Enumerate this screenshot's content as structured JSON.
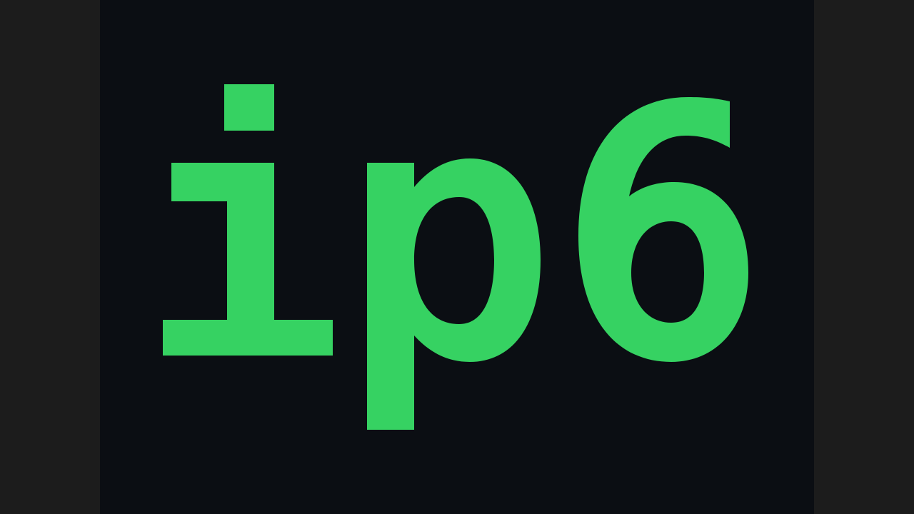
{
  "logo": {
    "text": "ip6",
    "color": "#36d262",
    "background": "#0b0e13"
  },
  "viewer": {
    "letterbox_color": "#1c1c1c"
  }
}
